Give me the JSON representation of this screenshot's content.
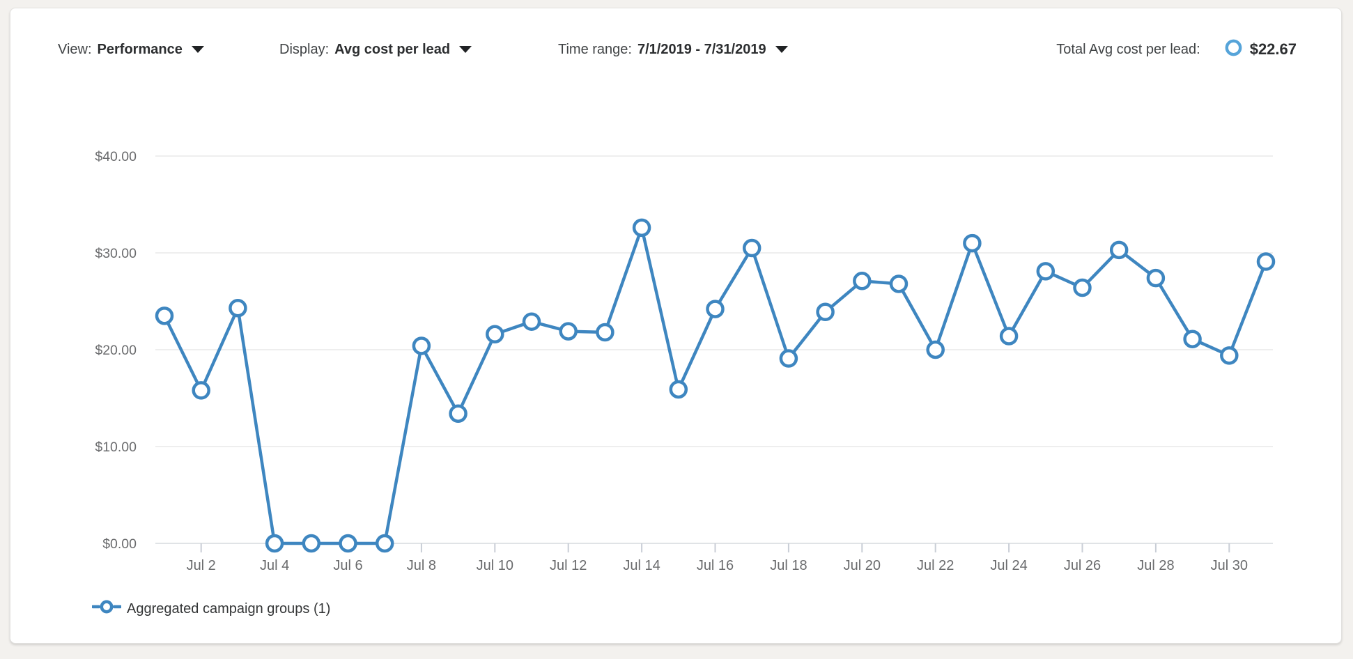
{
  "header": {
    "view": {
      "label": "View:",
      "value": "Performance"
    },
    "display": {
      "label": "Display:",
      "value": "Avg cost per lead"
    },
    "time_range": {
      "label": "Time range:",
      "value": "7/1/2019 - 7/31/2019"
    },
    "total": {
      "label": "Total Avg cost per lead:",
      "value": "$22.67"
    }
  },
  "legend": {
    "items": [
      {
        "label": "Aggregated campaign groups (1)",
        "marker": "open-circle-line",
        "color": "#3e86c0"
      }
    ]
  },
  "chart_data": {
    "type": "line",
    "title": "",
    "xlabel": "",
    "ylabel": "",
    "ylim": [
      0,
      40
    ],
    "grid": true,
    "legend_position": "bottom-left",
    "marker": "open-circle",
    "x": [
      "Jul 1",
      "Jul 2",
      "Jul 3",
      "Jul 4",
      "Jul 5",
      "Jul 6",
      "Jul 7",
      "Jul 8",
      "Jul 9",
      "Jul 10",
      "Jul 11",
      "Jul 12",
      "Jul 13",
      "Jul 14",
      "Jul 15",
      "Jul 16",
      "Jul 17",
      "Jul 18",
      "Jul 19",
      "Jul 20",
      "Jul 21",
      "Jul 22",
      "Jul 23",
      "Jul 24",
      "Jul 25",
      "Jul 26",
      "Jul 27",
      "Jul 28",
      "Jul 29",
      "Jul 30",
      "Jul 31"
    ],
    "series": [
      {
        "name": "Aggregated campaign groups (1)",
        "values": [
          23.5,
          15.8,
          24.3,
          0,
          0,
          0,
          0,
          20.4,
          13.4,
          21.6,
          22.9,
          21.9,
          21.8,
          32.6,
          15.9,
          24.2,
          30.5,
          19.1,
          23.9,
          27.1,
          26.8,
          20.0,
          31.0,
          21.4,
          28.1,
          26.4,
          30.3,
          27.4,
          21.1,
          19.4,
          29.1
        ]
      }
    ],
    "y_tick_labels": [
      "$0.00",
      "$10.00",
      "$20.00",
      "$30.00",
      "$40.00"
    ],
    "y_tick_values": [
      0,
      10,
      20,
      30,
      40
    ],
    "x_tick_labels": [
      "Jul 2",
      "Jul 4",
      "Jul 6",
      "Jul 8",
      "Jul 10",
      "Jul 12",
      "Jul 14",
      "Jul 16",
      "Jul 18",
      "Jul 20",
      "Jul 22",
      "Jul 24",
      "Jul 26",
      "Jul 28",
      "Jul 30"
    ],
    "x_tick_days": [
      2,
      4,
      6,
      8,
      10,
      12,
      14,
      16,
      18,
      20,
      22,
      24,
      26,
      28,
      30
    ]
  },
  "colors": {
    "accent_line": "#3e86c0",
    "total_marker_ring": "#56a4d9",
    "grid_line": "#e9e9e9",
    "axis_line": "#d6dade",
    "tick": "#c9ced6",
    "axis_text": "#6a6b6d",
    "page_bg": "#f3f1ee",
    "card_bg": "#ffffff"
  }
}
